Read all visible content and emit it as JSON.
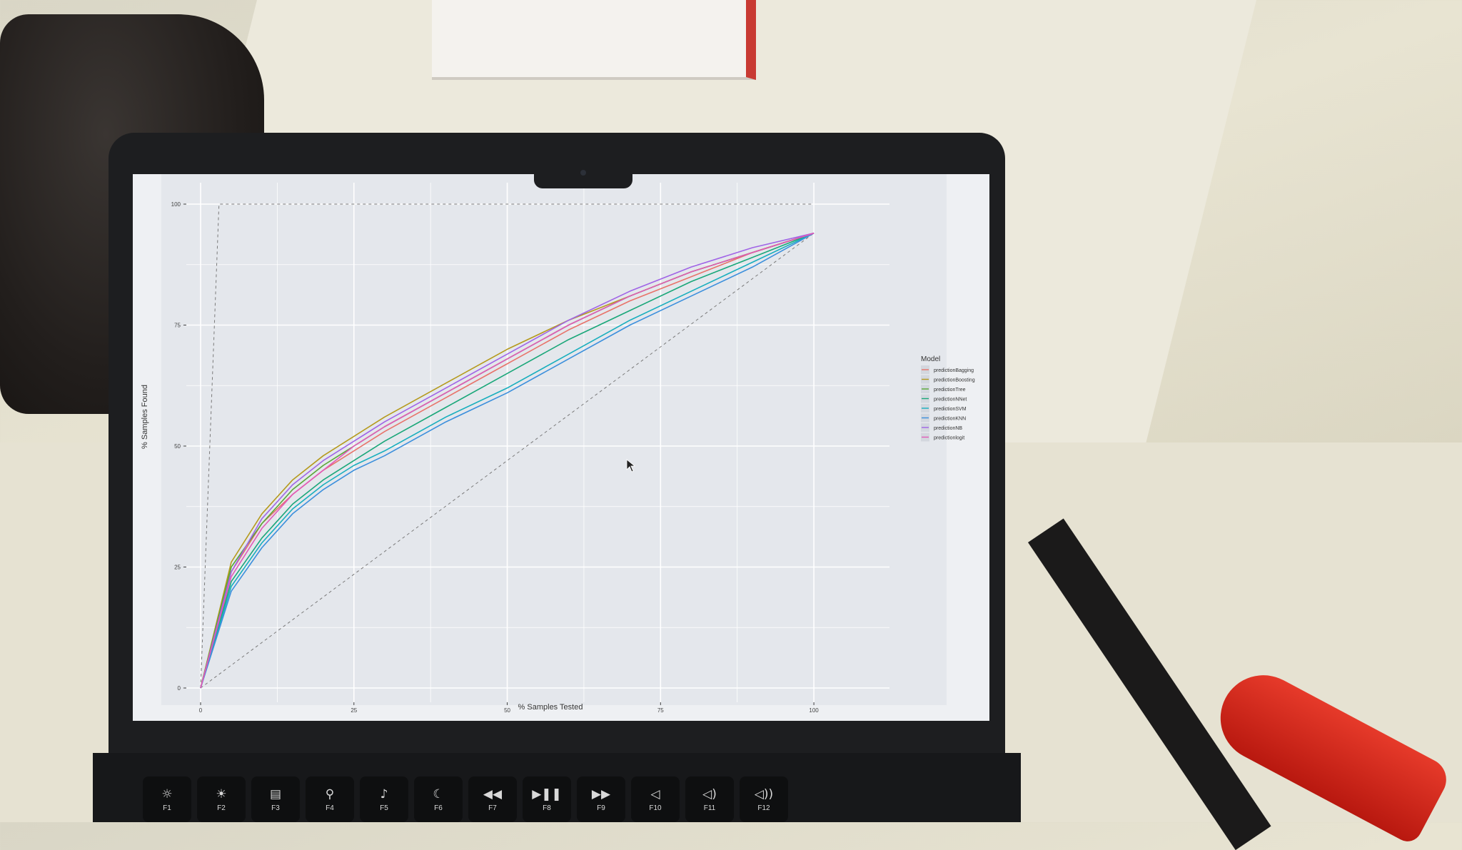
{
  "chart_data": {
    "type": "line",
    "title": "",
    "xlabel": "% Samples Tested",
    "ylabel": "% Samples Found",
    "xlim": [
      0,
      110
    ],
    "ylim": [
      0,
      100
    ],
    "x_ticks": [
      0,
      25,
      50,
      75,
      100
    ],
    "y_ticks": [
      0,
      25,
      50,
      75,
      100
    ],
    "grid": true,
    "background": "#e4e7ec",
    "legend": {
      "title": "Model",
      "position": "right"
    },
    "x": [
      0,
      5,
      10,
      15,
      20,
      25,
      30,
      40,
      50,
      60,
      70,
      80,
      90,
      100
    ],
    "series": [
      {
        "name": "predictionBagging",
        "color": "#e8736a",
        "values": [
          0,
          24,
          34,
          40,
          45,
          49,
          53,
          60,
          67,
          74,
          80,
          85,
          90,
          94
        ]
      },
      {
        "name": "predictionBoosting",
        "color": "#b59a1d",
        "values": [
          0,
          26,
          36,
          43,
          48,
          52,
          56,
          63,
          70,
          76,
          81,
          86,
          90,
          94
        ]
      },
      {
        "name": "predictionTree",
        "color": "#57a834",
        "values": [
          0,
          25,
          34,
          41,
          46,
          50,
          54,
          61,
          68,
          75,
          81,
          86,
          90,
          94
        ]
      },
      {
        "name": "predictionNNet",
        "color": "#1aa779",
        "values": [
          0,
          22,
          31,
          38,
          43,
          47,
          51,
          58,
          65,
          72,
          78,
          84,
          89,
          94
        ]
      },
      {
        "name": "predictionSVM",
        "color": "#17aebd",
        "values": [
          0,
          21,
          30,
          37,
          42,
          46,
          49,
          56,
          62,
          69,
          76,
          82,
          88,
          94
        ]
      },
      {
        "name": "predictionKNN",
        "color": "#3b8fdc",
        "values": [
          0,
          20,
          29,
          36,
          41,
          45,
          48,
          55,
          61,
          68,
          75,
          81,
          87,
          94
        ]
      },
      {
        "name": "predictionNB",
        "color": "#a064e6",
        "values": [
          0,
          24,
          35,
          42,
          47,
          51,
          55,
          62,
          69,
          76,
          82,
          87,
          91,
          94
        ]
      },
      {
        "name": "predictionlogit",
        "color": "#e259b8",
        "values": [
          0,
          23,
          33,
          40,
          45,
          50,
          54,
          61,
          68,
          75,
          81,
          86,
          90,
          94
        ]
      }
    ],
    "reference_lines": [
      {
        "points": [
          [
            0,
            0
          ],
          [
            100,
            94
          ]
        ],
        "style": "dashed"
      },
      {
        "points": [
          [
            0,
            0
          ],
          [
            3,
            100
          ],
          [
            100,
            100
          ]
        ],
        "style": "dashed"
      }
    ]
  },
  "keyboard": {
    "keys": [
      {
        "icon": "brightness-down-icon",
        "glyph": "☼",
        "label": "F1"
      },
      {
        "icon": "brightness-up-icon",
        "glyph": "☀",
        "label": "F2"
      },
      {
        "icon": "mission-control-icon",
        "glyph": "▤",
        "label": "F3"
      },
      {
        "icon": "search-icon",
        "glyph": "⚲",
        "label": "F4"
      },
      {
        "icon": "microphone-icon",
        "glyph": "♪",
        "label": "F5"
      },
      {
        "icon": "moon-icon",
        "glyph": "☾",
        "label": "F6"
      },
      {
        "icon": "rewind-icon",
        "glyph": "◀◀",
        "label": "F7"
      },
      {
        "icon": "play-pause-icon",
        "glyph": "▶❚❚",
        "label": "F8"
      },
      {
        "icon": "fast-forward-icon",
        "glyph": "▶▶",
        "label": "F9"
      },
      {
        "icon": "mute-icon",
        "glyph": "◁",
        "label": "F10"
      },
      {
        "icon": "volume-down-icon",
        "glyph": "◁)",
        "label": "F11"
      },
      {
        "icon": "volume-up-icon",
        "glyph": "◁))",
        "label": "F12"
      }
    ]
  }
}
